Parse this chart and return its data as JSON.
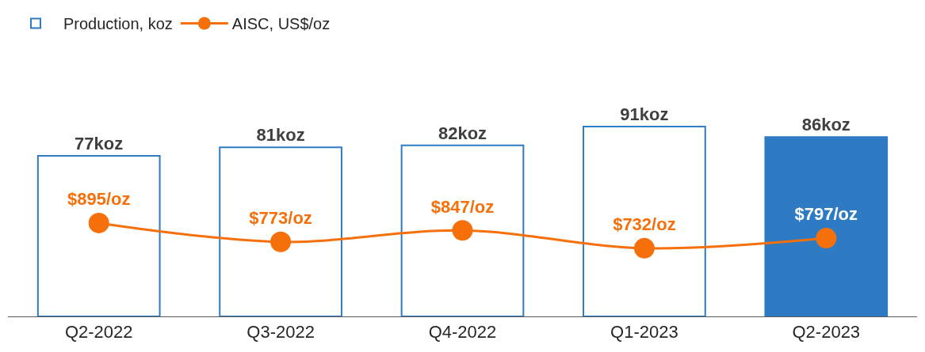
{
  "chart_data": {
    "type": "bar",
    "categories": [
      "Q2-2022",
      "Q3-2022",
      "Q4-2022",
      "Q1-2023",
      "Q2-2023"
    ],
    "series": [
      {
        "name": "Production, koz",
        "color": "#2e7bc4",
        "colors": [
          "#ffffff",
          "#ffffff",
          "#ffffff",
          "#ffffff",
          "#2e7bc4"
        ],
        "values": [
          77,
          81,
          82,
          91,
          86
        ],
        "value_labels": [
          "77koz",
          "81koz",
          "82koz",
          "91koz",
          "86koz"
        ]
      },
      {
        "name": "AISC, US$/oz",
        "type": "line",
        "axis": "y2",
        "color": "#f56f0b",
        "marker": "circle",
        "values": [
          895,
          773,
          847,
          732,
          797
        ],
        "value_labels": [
          "$895/oz",
          "$773/oz",
          "$847/oz",
          "$732/oz",
          "$797/oz"
        ]
      }
    ],
    "legend": "top left"
  }
}
